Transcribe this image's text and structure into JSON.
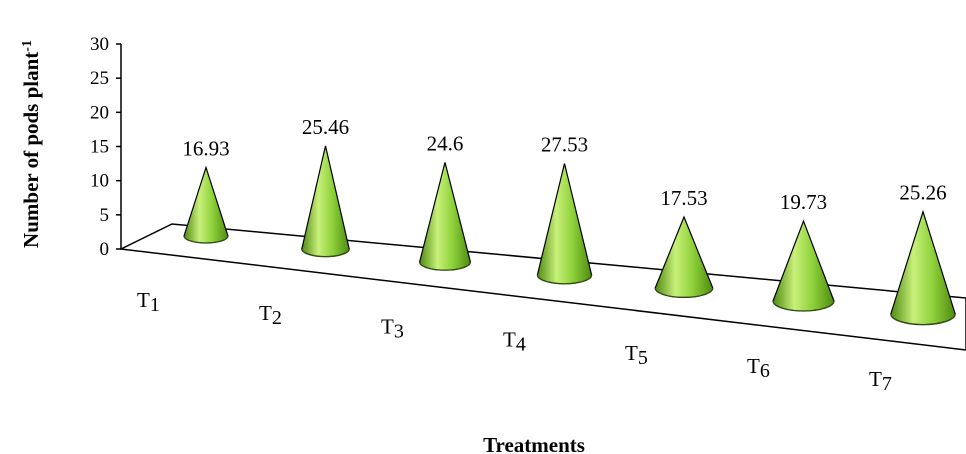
{
  "chart_data": {
    "type": "bar",
    "style": "3d-cone",
    "categories": [
      "T1",
      "T2",
      "T3",
      "T4",
      "T5",
      "T6",
      "T7"
    ],
    "category_labels": [
      {
        "main": "T",
        "sub": "1"
      },
      {
        "main": "T",
        "sub": "2"
      },
      {
        "main": "T",
        "sub": "3"
      },
      {
        "main": "T",
        "sub": "4"
      },
      {
        "main": "T",
        "sub": "5"
      },
      {
        "main": "T",
        "sub": "6"
      },
      {
        "main": "T",
        "sub": "7"
      }
    ],
    "values": [
      16.93,
      25.46,
      24.6,
      27.53,
      17.53,
      19.73,
      25.26
    ],
    "value_labels": [
      "16.93",
      "25.46",
      "24.6",
      "27.53",
      "17.53",
      "19.73",
      "25.26"
    ],
    "xlabel": "Treatments",
    "ylabel": "Number of pods plant",
    "ylabel_superscript": "-1",
    "ylim": [
      0,
      30
    ],
    "yticks": [
      "0",
      "5",
      "10",
      "15",
      "20",
      "25",
      "30"
    ],
    "grid": false,
    "legend": "none",
    "colors": {
      "cone_light": "#c8f07a",
      "cone_mid": "#8ed13a",
      "cone_dark": "#4f8a12",
      "outline": "#000000"
    }
  }
}
